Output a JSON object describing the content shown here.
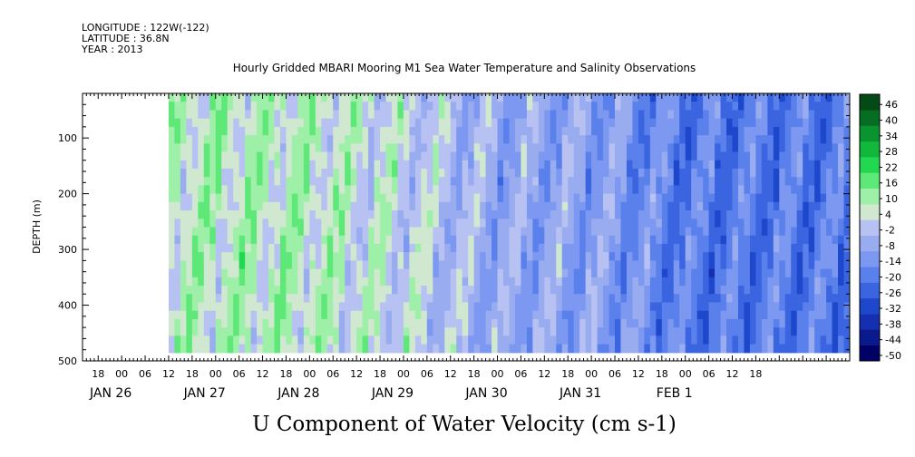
{
  "header": {
    "longitude": "LONGITUDE : 122W(-122)",
    "latitude": "LATITUDE : 36.8N",
    "year": "YEAR : 2013"
  },
  "chart_data": {
    "type": "heatmap",
    "title": "Hourly Gridded MBARI Mooring M1 Sea Water Temperature and Salinity Observations",
    "xlabel": "",
    "ylabel": "DEPTH (m)",
    "variable_label": "U Component of Water Velocity (cm s-1)",
    "x_range_hours_from_jan26_00": [
      -10,
      186
    ],
    "data_x_range_hours_from_jan26_00": [
      12,
      186
    ],
    "y_range_depth_m": [
      500,
      20
    ],
    "data_depth_range_m": [
      20,
      485
    ],
    "y_ticks": [
      100,
      200,
      300,
      400,
      500
    ],
    "x_hour_tick_labels": [
      "06",
      "12",
      "18",
      "00",
      "06",
      "12",
      "18",
      "00",
      "06",
      "12",
      "18",
      "00",
      "06",
      "12",
      "18",
      "00",
      "06",
      "12",
      "18",
      "00",
      "06",
      "12",
      "18",
      "00",
      "06",
      "12",
      "18",
      "00",
      "06",
      "12",
      "18"
    ],
    "x_hour_tick_hours": [
      -18,
      -12,
      -6,
      0,
      6,
      12,
      18,
      24,
      30,
      36,
      42,
      48,
      54,
      60,
      66,
      72,
      78,
      84,
      90,
      96,
      102,
      108,
      114,
      120,
      126,
      132,
      138,
      144,
      150,
      156,
      162
    ],
    "x_day_labels": [
      "JAN 26",
      "JAN 27",
      "JAN 28",
      "JAN 29",
      "JAN 30",
      "JAN 31",
      "FEB  1"
    ],
    "colorbar": {
      "levels": [
        -50,
        -44,
        -38,
        -32,
        -26,
        -20,
        -14,
        -8,
        -2,
        4,
        10,
        16,
        22,
        28,
        34,
        40,
        46
      ],
      "tick_labels": [
        "-50",
        "-44",
        "-38",
        "-32",
        "-26",
        "-20",
        "-14",
        "-8",
        "-2",
        "4",
        "10",
        "16",
        "22",
        "28",
        "34",
        "40",
        "46"
      ],
      "min": -50,
      "max": 50,
      "band_colors": [
        "#000066",
        "#0a1a8c",
        "#1430b0",
        "#1e48cc",
        "#3a64e0",
        "#5a80ec",
        "#7c98f0",
        "#9aacf0",
        "#b8c2f2",
        "#cfe8cf",
        "#9ef0a8",
        "#5ee878",
        "#22d850",
        "#12b83c",
        "#0a9430",
        "#066e22",
        "#034a16"
      ]
    },
    "day_profiles": [
      {
        "day": "JAN 26",
        "mean_u": 8
      },
      {
        "day": "JAN 27",
        "mean_u": 10
      },
      {
        "day": "JAN 28",
        "mean_u": 9
      },
      {
        "day": "JAN 29",
        "mean_u": 4
      },
      {
        "day": "JAN 30",
        "mean_u": -6
      },
      {
        "day": "JAN 31",
        "mean_u": -8
      },
      {
        "day": "FEB  1",
        "mean_u": -18
      }
    ],
    "grid": false,
    "legend": "right"
  }
}
